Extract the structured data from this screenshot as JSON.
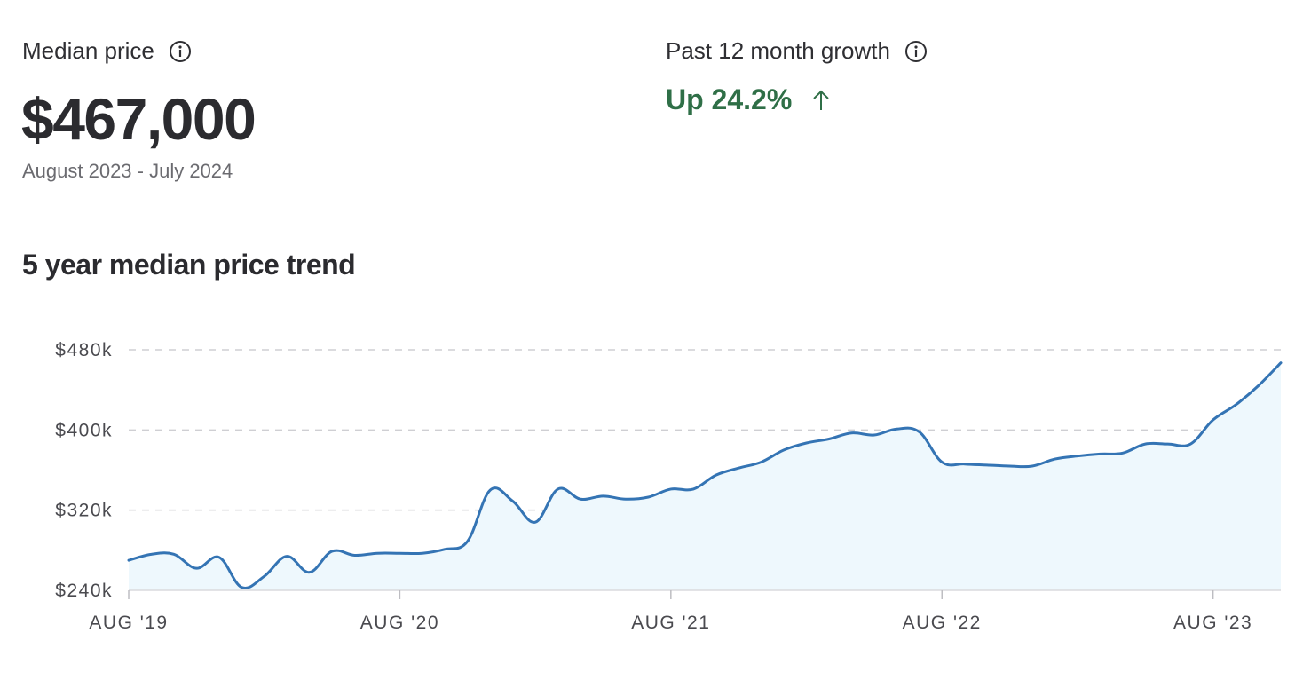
{
  "median": {
    "label": "Median price",
    "value": "$467,000",
    "period": "August 2023 - July 2024",
    "info_icon": "info-icon"
  },
  "growth": {
    "label": "Past 12 month growth",
    "value": "Up 24.2%",
    "info_icon": "info-icon",
    "trend_icon": "arrow-up-icon"
  },
  "colors": {
    "line": "#3474b4",
    "fill": "#eef8fd",
    "growth": "#2f6f47",
    "grid": "#cfcfd3"
  },
  "chart_data": {
    "type": "area",
    "title": "5 year median price trend",
    "xlabel": "",
    "ylabel": "",
    "ylim": [
      240000,
      480000
    ],
    "grid": "horizontal-dashed",
    "y_ticks": [
      {
        "value": 480000,
        "label": "$480k"
      },
      {
        "value": 400000,
        "label": "$400k"
      },
      {
        "value": 320000,
        "label": "$320k"
      },
      {
        "value": 240000,
        "label": "$240k"
      }
    ],
    "x_ticks": [
      {
        "index": 0,
        "label": "AUG '19"
      },
      {
        "index": 12,
        "label": "AUG '20"
      },
      {
        "index": 24,
        "label": "AUG '21"
      },
      {
        "index": 36,
        "label": "AUG '22"
      },
      {
        "index": 48,
        "label": "AUG '23"
      }
    ],
    "series": [
      {
        "values": [
          270000,
          276000,
          276000,
          262000,
          273000,
          243000,
          254000,
          274000,
          258000,
          279000,
          275000,
          277000,
          277000,
          277000,
          281000,
          289000,
          340000,
          329000,
          308000,
          341000,
          331000,
          334000,
          331000,
          333000,
          341000,
          341000,
          355000,
          362000,
          368000,
          380000,
          387000,
          391000,
          397000,
          395000,
          401000,
          398000,
          368000,
          366000,
          365000,
          364000,
          364000,
          371000,
          374000,
          376000,
          377000,
          386000,
          386000,
          386000,
          410000,
          425000,
          444000,
          467000
        ]
      }
    ]
  }
}
